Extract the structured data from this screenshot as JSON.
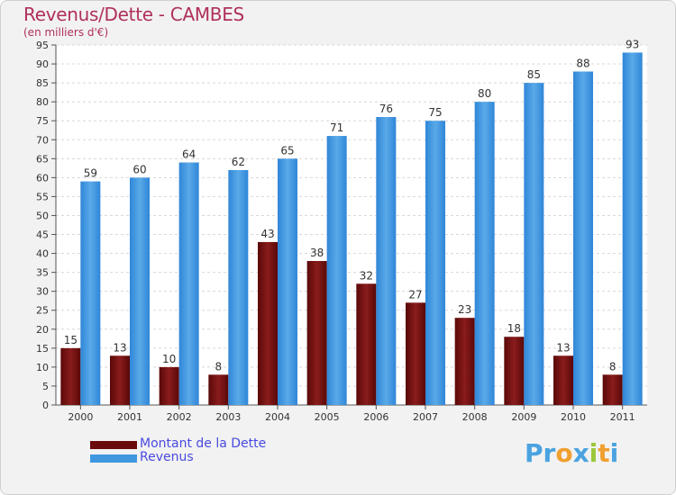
{
  "title": "Revenus/Dette - CAMBES",
  "subtitle": "(en milliers d'€)",
  "colors": {
    "title": "#b0305a",
    "dette": "#7a1010",
    "revenus": "#3f97e0",
    "legend_text": "#4a4ae0",
    "grid": "#d8d8d8"
  },
  "legend": [
    {
      "label": "Montant de la Dette",
      "color": "#6b0a0a"
    },
    {
      "label": "Revenus",
      "color": "#3f97e0"
    }
  ],
  "logo": "Proxiti",
  "chart_data": {
    "type": "bar",
    "title": "Revenus/Dette - CAMBES",
    "subtitle": "(en milliers d'€)",
    "xlabel": "",
    "ylabel": "",
    "ylim": [
      0,
      95
    ],
    "y_ticks": [
      0,
      5,
      10,
      15,
      20,
      25,
      30,
      35,
      40,
      45,
      50,
      55,
      60,
      65,
      70,
      75,
      80,
      85,
      90,
      95
    ],
    "grid": true,
    "legend_position": "bottom-left",
    "categories": [
      "2000",
      "2001",
      "2002",
      "2003",
      "2004",
      "2005",
      "2006",
      "2007",
      "2008",
      "2009",
      "2010",
      "2011"
    ],
    "series": [
      {
        "name": "Montant de la Dette",
        "values": [
          15,
          13,
          10,
          8,
          43,
          38,
          32,
          27,
          23,
          18,
          13,
          8
        ]
      },
      {
        "name": "Revenus",
        "values": [
          59,
          60,
          64,
          62,
          65,
          71,
          76,
          75,
          80,
          85,
          88,
          93
        ]
      }
    ]
  }
}
